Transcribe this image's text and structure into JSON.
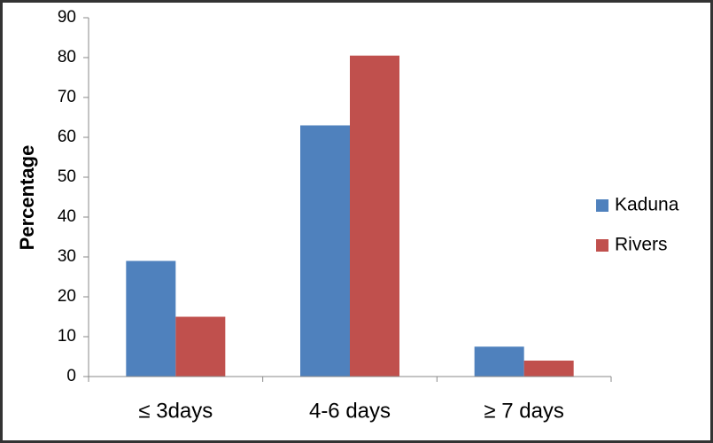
{
  "chart_data": {
    "type": "bar",
    "y_label": "Percentage",
    "categories": [
      "≤ 3days",
      "4-6 days",
      "≥ 7 days"
    ],
    "series": [
      {
        "name": "Kaduna",
        "color": "#4f81bd",
        "values": [
          29,
          63,
          7.5
        ]
      },
      {
        "name": "Rivers",
        "color": "#c0504d",
        "values": [
          15,
          80.5,
          4
        ]
      }
    ],
    "ylim": [
      0,
      90
    ],
    "yticks": [
      0,
      10,
      20,
      30,
      40,
      50,
      60,
      70,
      80,
      90
    ],
    "grid": false,
    "legend": "right"
  }
}
